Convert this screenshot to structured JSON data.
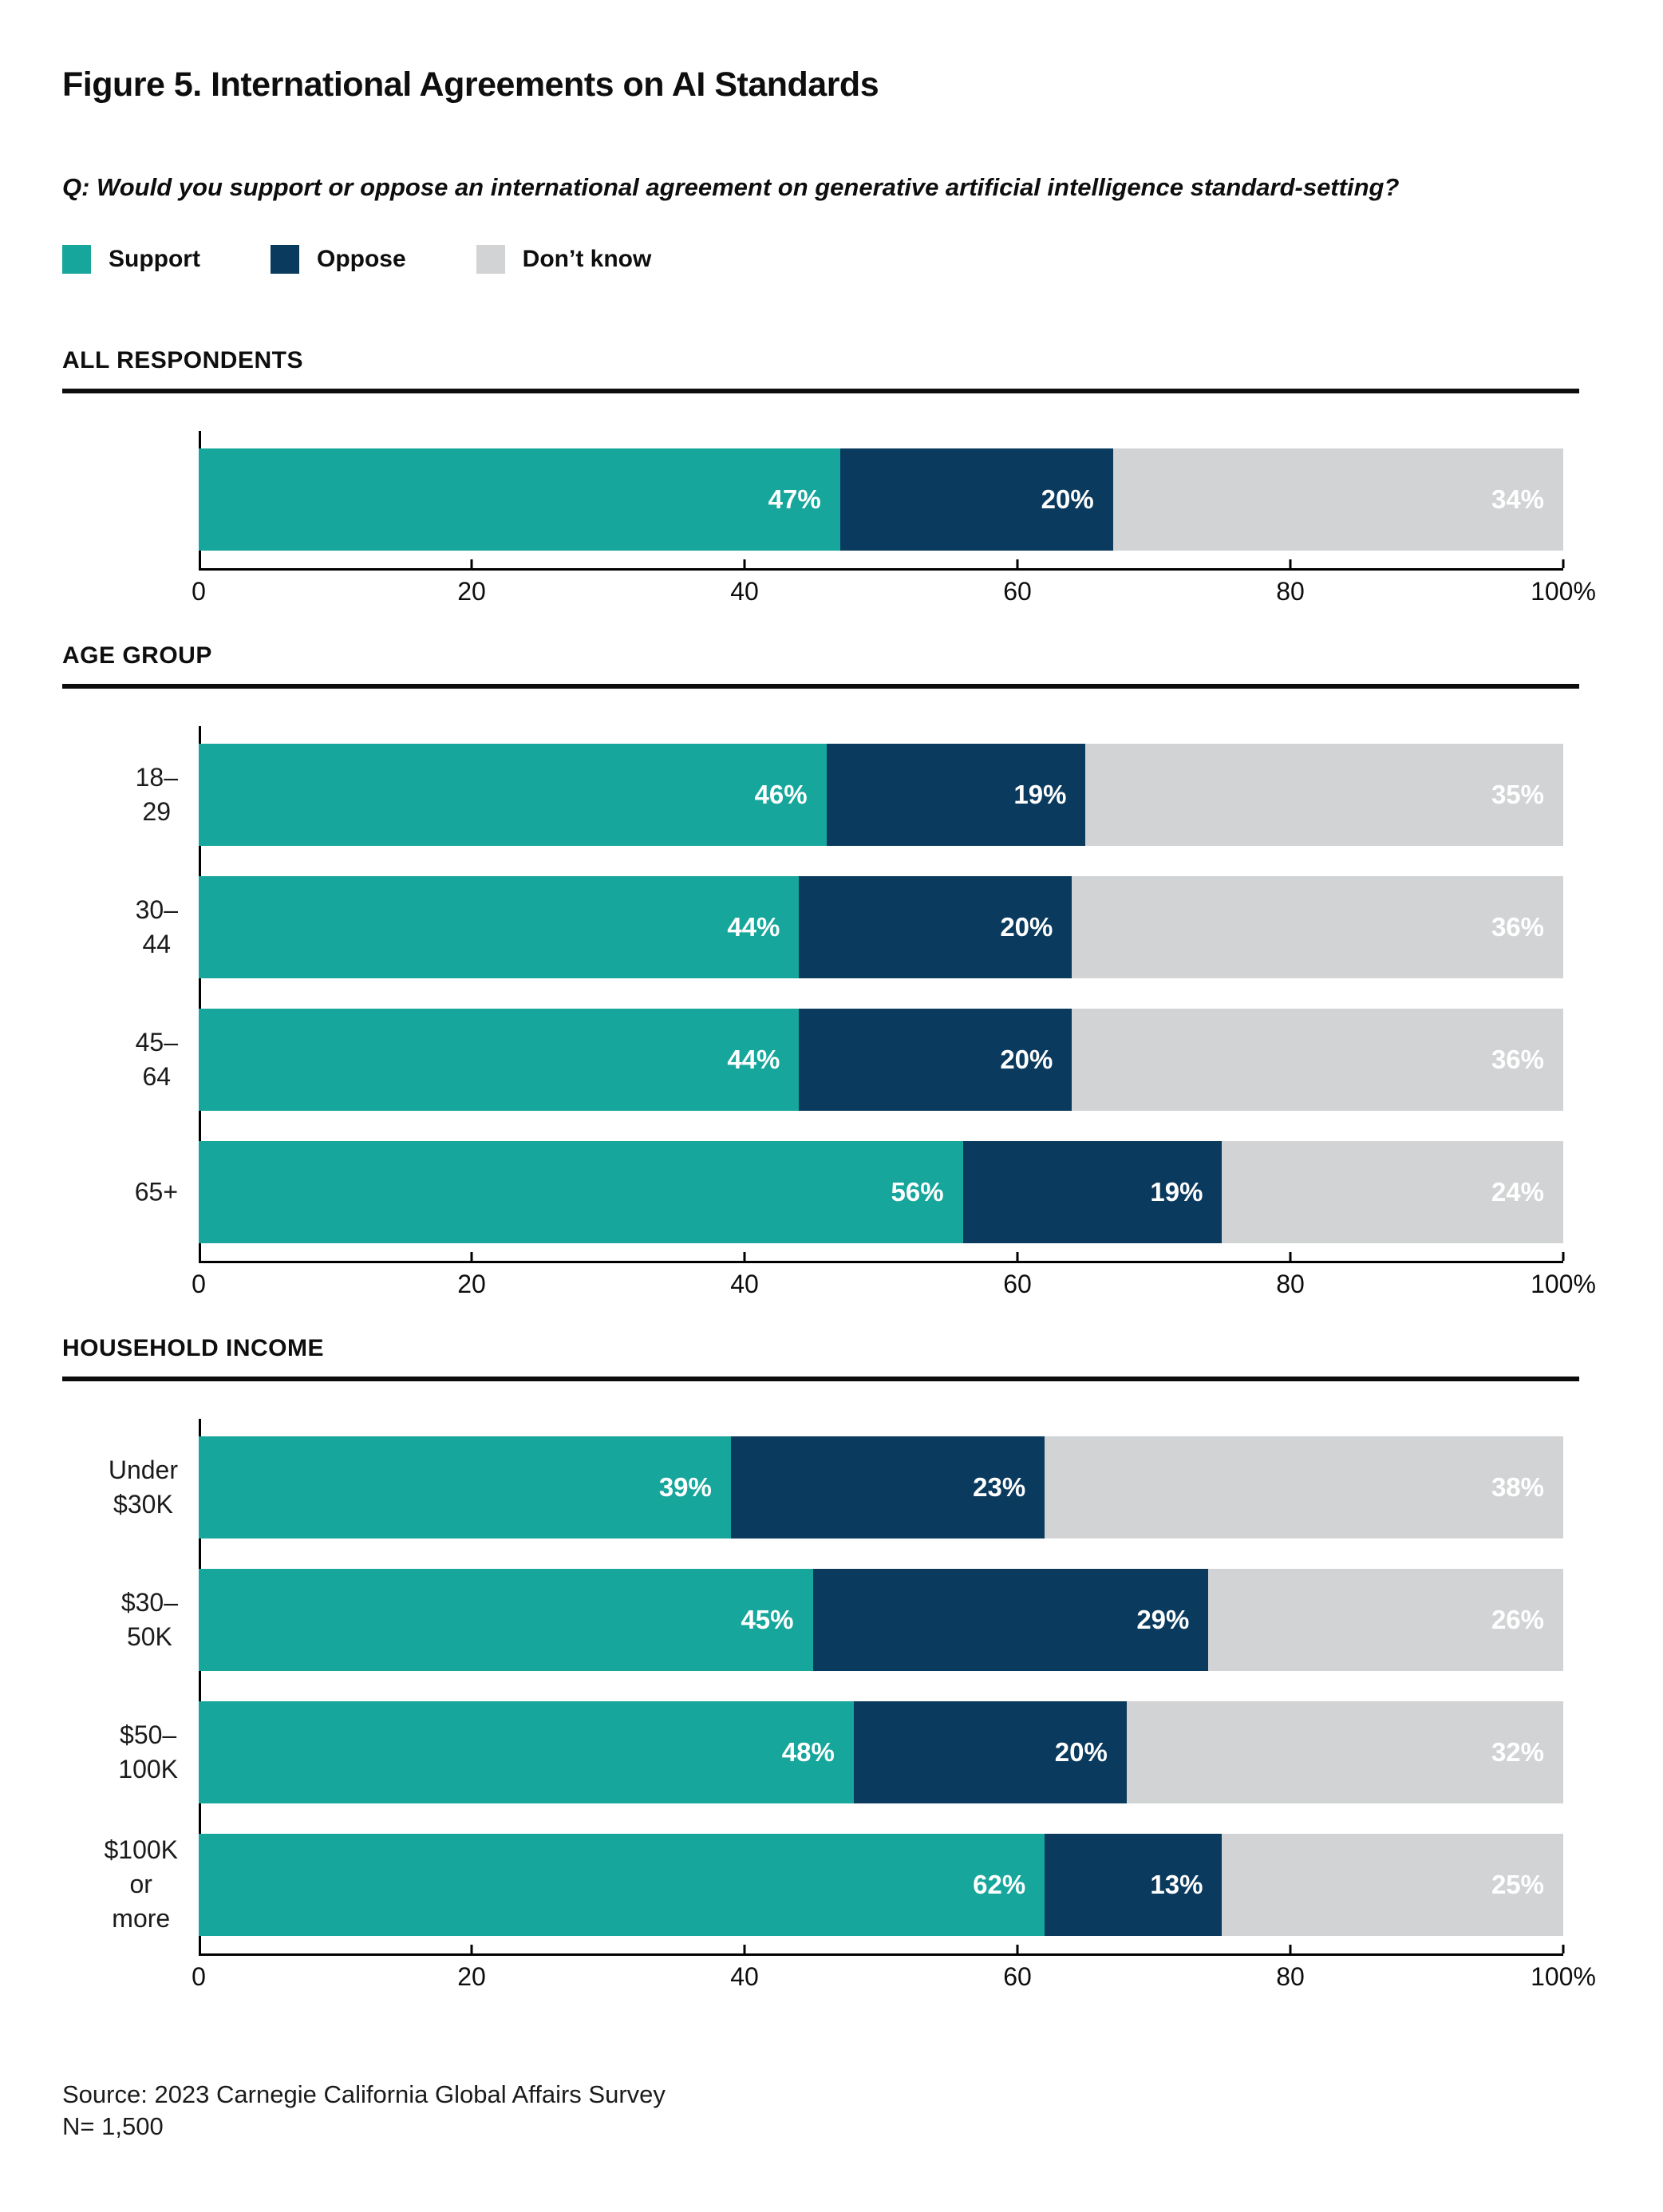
{
  "figure": {
    "title": "Figure 5. International Agreements on AI Standards",
    "question": "Q: Would you support or oppose an international agreement on generative artificial intelligence standard-setting?",
    "source_line1": "Source: 2023 Carnegie California Global Affairs Survey",
    "source_line2": "N= 1,500"
  },
  "legend": [
    {
      "label": "Support",
      "color": "#16A69B"
    },
    {
      "label": "Oppose",
      "color": "#0A3A5E"
    },
    {
      "label": "Don’t know",
      "color": "#D1D3D4"
    }
  ],
  "colors": {
    "support": "#16A69B",
    "oppose": "#0A3A5E",
    "dont_know": "#D1D3D4",
    "axis": "#000000",
    "text": "#0E0E0E"
  },
  "axis": {
    "min": 0,
    "max": 100,
    "tick_values": [
      0,
      20,
      40,
      60,
      80,
      100
    ],
    "tick_labels": [
      "0",
      "20",
      "40",
      "60",
      "80",
      "100%"
    ]
  },
  "chart_data": [
    {
      "type": "bar",
      "orientation": "horizontal",
      "stacked": true,
      "id": "all-respondents",
      "section": "ALL RESPONDENTS",
      "categories": [
        ""
      ],
      "series": [
        {
          "name": "Support",
          "values": [
            47
          ]
        },
        {
          "name": "Oppose",
          "values": [
            20
          ]
        },
        {
          "name": "Don’t know",
          "values": [
            34
          ]
        }
      ],
      "xlim": [
        0,
        100
      ],
      "value_suffix": "%"
    },
    {
      "type": "bar",
      "orientation": "horizontal",
      "stacked": true,
      "id": "age-group",
      "section": "AGE GROUP",
      "categories": [
        "18–29",
        "30–44",
        "45–64",
        "65+"
      ],
      "series": [
        {
          "name": "Support",
          "values": [
            46,
            44,
            44,
            56
          ]
        },
        {
          "name": "Oppose",
          "values": [
            19,
            20,
            20,
            19
          ]
        },
        {
          "name": "Don’t know",
          "values": [
            35,
            36,
            36,
            24
          ]
        }
      ],
      "xlim": [
        0,
        100
      ],
      "value_suffix": "%"
    },
    {
      "type": "bar",
      "orientation": "horizontal",
      "stacked": true,
      "id": "household-income",
      "section": "HOUSEHOLD INCOME",
      "categories": [
        "Under $30K",
        "$30–50K",
        "$50–100K",
        "$100K\nor more"
      ],
      "series": [
        {
          "name": "Support",
          "values": [
            39,
            45,
            48,
            62
          ]
        },
        {
          "name": "Oppose",
          "values": [
            23,
            29,
            20,
            13
          ]
        },
        {
          "name": "Don’t know",
          "values": [
            38,
            26,
            32,
            25
          ]
        }
      ],
      "xlim": [
        0,
        100
      ],
      "value_suffix": "%"
    }
  ]
}
